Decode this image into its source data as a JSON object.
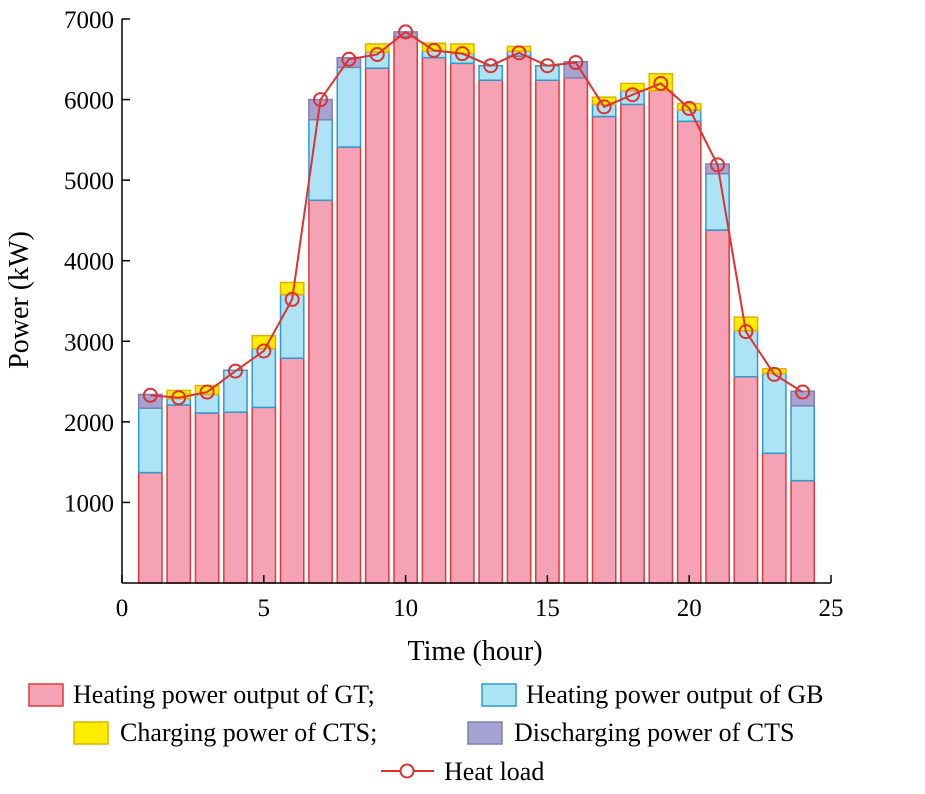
{
  "chart_data": {
    "type": "bar",
    "title": "",
    "xlabel": "Time (hour)",
    "ylabel": "Power (kW)",
    "xlim": [
      0,
      25
    ],
    "ylim": [
      0,
      7000
    ],
    "xticks": [
      0,
      5,
      10,
      15,
      20,
      25
    ],
    "yticks": [
      1000,
      2000,
      3000,
      4000,
      5000,
      6000,
      7000
    ],
    "grid": false,
    "legend_position": "bottom",
    "x": [
      1,
      2,
      3,
      4,
      5,
      6,
      7,
      8,
      9,
      10,
      11,
      12,
      13,
      14,
      15,
      16,
      17,
      18,
      19,
      20,
      21,
      22,
      23,
      24
    ],
    "stacked_series": [
      {
        "name": "Heating power output of GT",
        "color": "#f5a3b4",
        "edge": "#e03a3a",
        "values": [
          1370,
          2210,
          2110,
          2120,
          2180,
          2790,
          4750,
          5410,
          6390,
          6780,
          6520,
          6450,
          6240,
          6540,
          6240,
          6270,
          5790,
          5940,
          6110,
          5730,
          4380,
          2560,
          1610,
          1270
        ]
      },
      {
        "name": "Heating power output of GB",
        "color": "#aee2f5",
        "edge": "#2b9ccf",
        "values": [
          800,
          80,
          230,
          520,
          730,
          790,
          1000,
          990,
          200,
          0,
          80,
          120,
          180,
          60,
          180,
          0,
          150,
          170,
          0,
          140,
          700,
          570,
          990,
          930
        ]
      },
      {
        "name": "Charging power of CTS",
        "color": "#ffed00",
        "edge": "#e0b000",
        "values": [
          0,
          100,
          110,
          0,
          160,
          150,
          0,
          0,
          100,
          0,
          100,
          120,
          0,
          60,
          0,
          0,
          90,
          90,
          210,
          80,
          0,
          170,
          60,
          0
        ]
      },
      {
        "name": "Discharging power of CTS",
        "color": "#a6a3d2",
        "edge": "#7f7fb3",
        "values": [
          170,
          0,
          0,
          0,
          0,
          0,
          250,
          120,
          0,
          60,
          0,
          0,
          0,
          0,
          0,
          200,
          0,
          0,
          0,
          0,
          120,
          0,
          0,
          180
        ]
      }
    ],
    "line_series": {
      "name": "Heat load",
      "color": "#e03030",
      "values": [
        2330,
        2300,
        2370,
        2630,
        2880,
        3520,
        6000,
        6500,
        6560,
        6840,
        6610,
        6570,
        6420,
        6580,
        6420,
        6460,
        5910,
        6060,
        6200,
        5890,
        5190,
        3120,
        2590,
        2370
      ]
    }
  },
  "legend": {
    "row1": [
      "Heating power output of GT;",
      "Heating power output of GB"
    ],
    "row2": [
      "Charging power of CTS;",
      "Discharging power of CTS"
    ],
    "row3": [
      "Heat load"
    ]
  }
}
